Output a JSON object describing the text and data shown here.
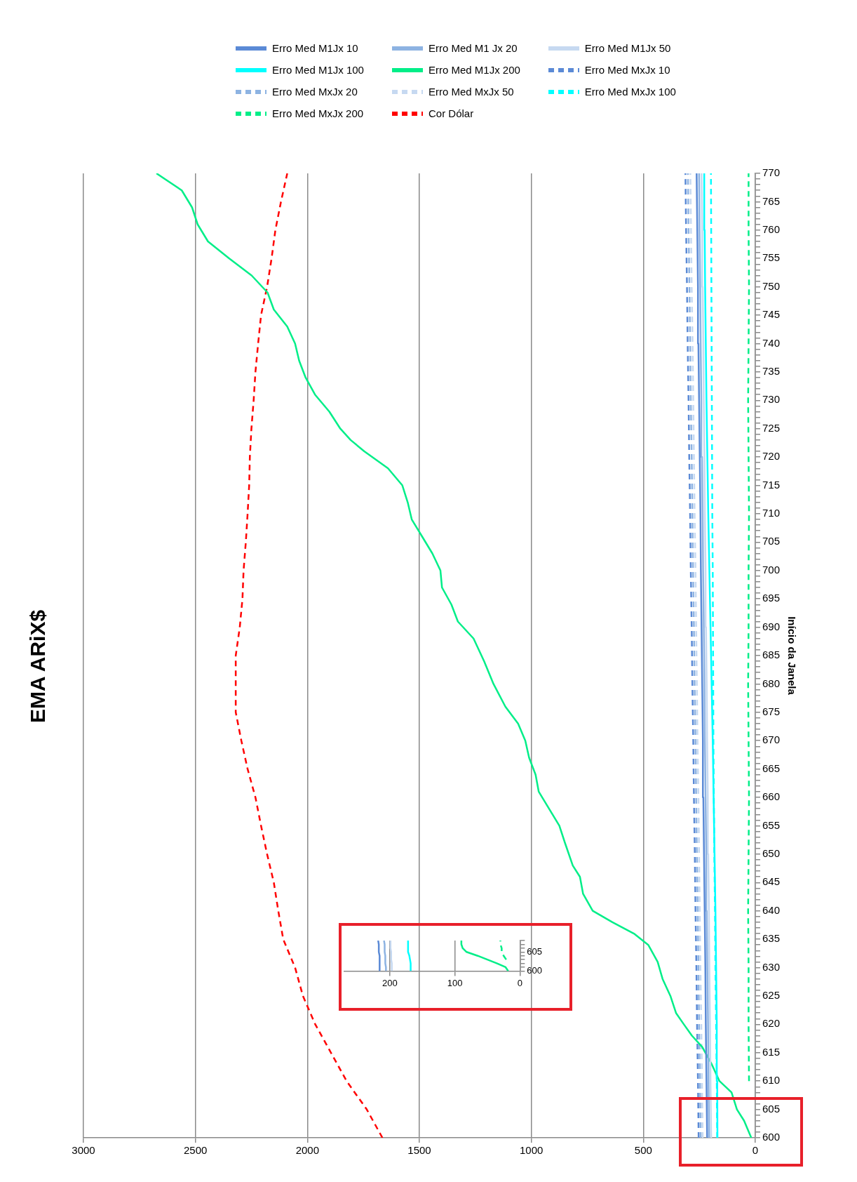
{
  "chart_data": [
    {
      "type": "line",
      "title": "EMA ARiX$",
      "ylabel": "Início da Janela",
      "xlim": [
        3000,
        0
      ],
      "xticks": [
        0,
        500,
        1000,
        1500,
        2000,
        2500,
        3000
      ],
      "ylim": [
        600,
        770
      ],
      "yticks": [
        600,
        {
          "value": 601,
          "label": null
        },
        {
          "value": 602,
          "label": null
        },
        {
          "value": 603,
          "label": null
        },
        {
          "value": 604,
          "label": null
        },
        605,
        {
          "value": 606,
          "label": null
        },
        {
          "value": 607,
          "label": null
        },
        {
          "value": 608,
          "label": null
        },
        {
          "value": 609,
          "label": null
        },
        610,
        {
          "value": 611,
          "label": null
        },
        {
          "value": 612,
          "label": null
        },
        {
          "value": 613,
          "label": null
        },
        {
          "value": 614,
          "label": null
        },
        615,
        {
          "value": 616,
          "label": null
        },
        {
          "value": 617,
          "label": null
        },
        {
          "value": 618,
          "label": null
        },
        {
          "value": 619,
          "label": null
        },
        620,
        {
          "value": 621,
          "label": null
        },
        {
          "value": 622,
          "label": null
        },
        {
          "value": 623,
          "label": null
        },
        {
          "value": 624,
          "label": null
        },
        625,
        {
          "value": 626,
          "label": null
        },
        {
          "value": 627,
          "label": null
        },
        {
          "value": 628,
          "label": null
        },
        {
          "value": 629,
          "label": null
        },
        630,
        {
          "value": 631,
          "label": null
        },
        {
          "value": 632,
          "label": null
        },
        {
          "value": 633,
          "label": null
        },
        {
          "value": 634,
          "label": null
        },
        635,
        {
          "value": 636,
          "label": null
        },
        {
          "value": 637,
          "label": null
        },
        {
          "value": 638,
          "label": null
        },
        {
          "value": 639,
          "label": null
        },
        640,
        {
          "value": 641,
          "label": null
        },
        {
          "value": 642,
          "label": null
        },
        {
          "value": 643,
          "label": null
        },
        {
          "value": 644,
          "label": null
        },
        645,
        {
          "value": 646,
          "label": null
        },
        {
          "value": 647,
          "label": null
        },
        {
          "value": 648,
          "label": null
        },
        {
          "value": 649,
          "label": null
        },
        650,
        {
          "value": 651,
          "label": null
        },
        {
          "value": 652,
          "label": null
        },
        {
          "value": 653,
          "label": null
        },
        {
          "value": 654,
          "label": null
        },
        655,
        {
          "value": 656,
          "label": null
        },
        {
          "value": 657,
          "label": null
        },
        {
          "value": 658,
          "label": null
        },
        {
          "value": 659,
          "label": null
        },
        660,
        {
          "value": 661,
          "label": null
        },
        {
          "value": 662,
          "label": null
        },
        {
          "value": 663,
          "label": null
        },
        {
          "value": 664,
          "label": null
        },
        665,
        {
          "value": 666,
          "label": null
        },
        {
          "value": 667,
          "label": null
        },
        {
          "value": 668,
          "label": null
        },
        {
          "value": 669,
          "label": null
        },
        670,
        {
          "value": 671,
          "label": null
        },
        {
          "value": 672,
          "label": null
        },
        {
          "value": 673,
          "label": null
        },
        {
          "value": 674,
          "label": null
        },
        675,
        {
          "value": 676,
          "label": null
        },
        {
          "value": 677,
          "label": null
        },
        {
          "value": 678,
          "label": null
        },
        {
          "value": 679,
          "label": null
        },
        680,
        {
          "value": 681,
          "label": null
        },
        {
          "value": 682,
          "label": null
        },
        {
          "value": 683,
          "label": null
        },
        {
          "value": 684,
          "label": null
        },
        685,
        {
          "value": 686,
          "label": null
        },
        {
          "value": 687,
          "label": null
        },
        {
          "value": 688,
          "label": null
        },
        {
          "value": 689,
          "label": null
        },
        690,
        {
          "value": 691,
          "label": null
        },
        {
          "value": 692,
          "label": null
        },
        {
          "value": 693,
          "label": null
        },
        {
          "value": 694,
          "label": null
        },
        695,
        {
          "value": 696,
          "label": null
        },
        {
          "value": 697,
          "label": null
        },
        {
          "value": 698,
          "label": null
        },
        {
          "value": 699,
          "label": null
        },
        700,
        {
          "value": 701,
          "label": null
        },
        {
          "value": 702,
          "label": null
        },
        {
          "value": 703,
          "label": null
        },
        {
          "value": 704,
          "label": null
        },
        705,
        {
          "value": 706,
          "label": null
        },
        {
          "value": 707,
          "label": null
        },
        {
          "value": 708,
          "label": null
        },
        {
          "value": 709,
          "label": null
        },
        710,
        {
          "value": 711,
          "label": null
        },
        {
          "value": 712,
          "label": null
        },
        {
          "value": 713,
          "label": null
        },
        {
          "value": 714,
          "label": null
        },
        715,
        {
          "value": 716,
          "label": null
        },
        {
          "value": 717,
          "label": null
        },
        {
          "value": 718,
          "label": null
        },
        {
          "value": 719,
          "label": null
        },
        720,
        {
          "value": 721,
          "label": null
        },
        {
          "value": 722,
          "label": null
        },
        {
          "value": 723,
          "label": null
        },
        {
          "value": 724,
          "label": null
        },
        725,
        {
          "value": 726,
          "label": null
        },
        {
          "value": 727,
          "label": null
        },
        {
          "value": 728,
          "label": null
        },
        {
          "value": 729,
          "label": null
        },
        730,
        {
          "value": 731,
          "label": null
        },
        {
          "value": 732,
          "label": null
        },
        {
          "value": 733,
          "label": null
        },
        {
          "value": 734,
          "label": null
        },
        735,
        {
          "value": 736,
          "label": null
        },
        {
          "value": 737,
          "label": null
        },
        {
          "value": 738,
          "label": null
        },
        {
          "value": 739,
          "label": null
        },
        740,
        {
          "value": 741,
          "label": null
        },
        {
          "value": 742,
          "label": null
        },
        {
          "value": 743,
          "label": null
        },
        {
          "value": 744,
          "label": null
        },
        745,
        {
          "value": 746,
          "label": null
        },
        {
          "value": 747,
          "label": null
        },
        {
          "value": 748,
          "label": null
        },
        {
          "value": 749,
          "label": null
        },
        750,
        {
          "value": 751,
          "label": null
        },
        {
          "value": 752,
          "label": null
        },
        {
          "value": 753,
          "label": null
        },
        {
          "value": 754,
          "label": null
        },
        755,
        {
          "value": 756,
          "label": null
        },
        {
          "value": 757,
          "label": null
        },
        {
          "value": 758,
          "label": null
        },
        {
          "value": 759,
          "label": null
        },
        760,
        {
          "value": 761,
          "label": null
        },
        {
          "value": 762,
          "label": null
        },
        {
          "value": 763,
          "label": null
        },
        {
          "value": 764,
          "label": null
        },
        765,
        {
          "value": 766,
          "label": null
        },
        {
          "value": 767,
          "label": null
        },
        {
          "value": 768,
          "label": null
        },
        {
          "value": 769,
          "label": null
        },
        770
      ],
      "grid": "x",
      "legend": "top",
      "series": [
        {
          "name": "Erro Med M1Jx 10",
          "color": "#5b8ad6",
          "line_style": "solid",
          "x": [
            215,
            218,
            221,
            223,
            226,
            229,
            232,
            234,
            237,
            240,
            243,
            245,
            248,
            251,
            254,
            256,
            259,
            262
          ],
          "values": [
            600,
            610,
            620,
            630,
            640,
            650,
            660,
            670,
            680,
            690,
            700,
            710,
            720,
            730,
            740,
            750,
            760,
            770
          ]
        },
        {
          "name": "Erro Med M1 Jx 20",
          "color": "#8db3e2",
          "line_style": "solid",
          "x": [
            206,
            209,
            211,
            214,
            217,
            219,
            222,
            225,
            227,
            230,
            233,
            235,
            238,
            241,
            244,
            246,
            249,
            251
          ],
          "values": [
            600,
            610,
            620,
            630,
            640,
            650,
            660,
            670,
            680,
            690,
            700,
            710,
            720,
            730,
            740,
            750,
            760,
            770
          ]
        },
        {
          "name": "Erro Med M1Jx 50",
          "color": "#c6d9f1",
          "line_style": "solid",
          "x": [
            197,
            200,
            202,
            205,
            207,
            210,
            212,
            215,
            217,
            220,
            222,
            225,
            227,
            230,
            232,
            235,
            237,
            240
          ],
          "values": [
            600,
            610,
            620,
            630,
            640,
            650,
            660,
            670,
            680,
            690,
            700,
            710,
            720,
            730,
            740,
            750,
            760,
            770
          ]
        },
        {
          "name": "Erro Med M1Jx 100",
          "color": "#00ffff",
          "line_style": "solid",
          "x": [
            169,
            170,
            172,
            175,
            178,
            182,
            186,
            190,
            195,
            200,
            205,
            210,
            214,
            218,
            221,
            224,
            226,
            228
          ],
          "values": [
            600,
            610,
            620,
            630,
            640,
            650,
            660,
            670,
            680,
            690,
            700,
            710,
            720,
            730,
            740,
            750,
            760,
            770
          ]
        },
        {
          "name": "Erro Med M1Jx 200",
          "color": "#00ee88",
          "line_style": "solid",
          "x": [
            18,
            50,
            82,
            106,
            160,
            195,
            237,
            283,
            319,
            354,
            379,
            414,
            436,
            478,
            542,
            638,
            726,
            769,
            783,
            815,
            850,
            875,
            921,
            967,
            981,
            1010,
            1027,
            1059,
            1116,
            1169,
            1211,
            1258,
            1328,
            1357,
            1399,
            1406,
            1442,
            1488,
            1534,
            1552,
            1576,
            1640,
            1746,
            1807,
            1853,
            1902,
            1966,
            2008,
            2037,
            2055,
            2090,
            2150,
            2178,
            2249,
            2349,
            2444,
            2490,
            2515,
            2561,
            2674
          ],
          "values": [
            600,
            603,
            605,
            608,
            610,
            613,
            616,
            618,
            620,
            622,
            625,
            628,
            631,
            634,
            636,
            638,
            640,
            643,
            646,
            648,
            652,
            655,
            658,
            661,
            664,
            667,
            670,
            673,
            676,
            680,
            684,
            688,
            691,
            694,
            697,
            700,
            703,
            706,
            709,
            712,
            715,
            718,
            721,
            723,
            725,
            728,
            731,
            734,
            737,
            740,
            743,
            746,
            749,
            752,
            755,
            758,
            761,
            764,
            767,
            770
          ]
        },
        {
          "name": "Erro Med MxJx 10",
          "color": "#5b8ad6",
          "line_style": "dashed",
          "x": [
            253,
            256,
            260,
            263,
            267,
            270,
            274,
            277,
            281,
            284,
            288,
            291,
            295,
            298,
            302,
            305,
            309,
            312
          ],
          "values": [
            600,
            610,
            620,
            630,
            640,
            650,
            660,
            670,
            680,
            690,
            700,
            710,
            720,
            730,
            740,
            750,
            760,
            770
          ]
        },
        {
          "name": "Erro Med MxJx 20",
          "color": "#8db3e2",
          "line_style": "dashed",
          "x": [
            244,
            247,
            251,
            254,
            257,
            261,
            264,
            267,
            271,
            274,
            278,
            281,
            284,
            288,
            291,
            294,
            298,
            301
          ],
          "values": [
            600,
            610,
            620,
            630,
            640,
            650,
            660,
            670,
            680,
            690,
            700,
            710,
            720,
            730,
            740,
            750,
            760,
            770
          ]
        },
        {
          "name": "Erro Med MxJx 50",
          "color": "#c6d9f1",
          "line_style": "dashed",
          "x": [
            235,
            238,
            241,
            245,
            248,
            251,
            254,
            258,
            261,
            264,
            267,
            271,
            274,
            277,
            280,
            284,
            287,
            290
          ],
          "values": [
            600,
            610,
            620,
            630,
            640,
            650,
            660,
            670,
            680,
            690,
            700,
            710,
            720,
            730,
            740,
            750,
            760,
            770
          ]
        },
        {
          "name": "Erro Med MxJx 100",
          "color": "#00ffff",
          "line_style": "dashed",
          "x": [
            170,
            172,
            175,
            178,
            180,
            183,
            185,
            187,
            188,
            189,
            190,
            192,
            193,
            194,
            195,
            196,
            197,
            198
          ],
          "values": [
            600,
            610,
            620,
            630,
            640,
            650,
            660,
            670,
            680,
            690,
            700,
            710,
            720,
            730,
            740,
            750,
            760,
            770
          ]
        },
        {
          "name": "Erro Med MxJx 200",
          "color": "#00ee88",
          "line_style": "dashed",
          "x": [
            28,
            30,
            30,
            32,
            30,
            28,
            30,
            32,
            30,
            30,
            28,
            30,
            32,
            30,
            28,
            30,
            30
          ],
          "values": [
            610,
            620,
            630,
            640,
            650,
            660,
            670,
            680,
            690,
            700,
            710,
            720,
            730,
            740,
            750,
            760,
            770
          ]
        },
        {
          "name": "Cor Dólar",
          "color": "#ff0000",
          "line_style": "dashed",
          "x": [
            1665,
            1735,
            1825,
            1895,
            1965,
            2020,
            2055,
            2108,
            2130,
            2150,
            2180,
            2207,
            2232,
            2267,
            2295,
            2320,
            2320,
            2320,
            2302,
            2290,
            2285,
            2275,
            2267,
            2260,
            2257,
            2250,
            2240,
            2232,
            2220,
            2207,
            2180,
            2160,
            2143,
            2118,
            2090
          ],
          "values": [
            600,
            605,
            610,
            615,
            620,
            625,
            630,
            635,
            640,
            645,
            650,
            655,
            660,
            665,
            670,
            675,
            680,
            685,
            690,
            695,
            700,
            705,
            710,
            715,
            720,
            725,
            730,
            735,
            740,
            745,
            750,
            755,
            760,
            765,
            770
          ]
        }
      ]
    },
    {
      "type": "line",
      "xlim": [
        270,
        0
      ],
      "xticks": [
        0,
        100,
        200
      ],
      "ylim": [
        600,
        608
      ],
      "yticks": [
        600,
        {
          "value": 601,
          "label": null
        },
        {
          "value": 602,
          "label": null
        },
        {
          "value": 603,
          "label": null
        },
        {
          "value": 604,
          "label": null
        },
        605,
        {
          "value": 606,
          "label": null
        },
        {
          "value": 607,
          "label": null
        },
        {
          "value": 608,
          "label": null
        }
      ],
      "grid": "x",
      "series": [
        {
          "color": "#5b8ad6",
          "line_style": "solid",
          "x": [
            215,
            215,
            216,
            216,
            216,
            217,
            217,
            217,
            218
          ],
          "values": [
            600,
            601,
            602,
            603,
            604,
            605,
            606,
            607,
            608
          ]
        },
        {
          "color": "#8db3e2",
          "line_style": "solid",
          "x": [
            206,
            206,
            207,
            207,
            207,
            208,
            208,
            208,
            209
          ],
          "values": [
            600,
            601,
            602,
            603,
            604,
            605,
            606,
            607,
            608
          ]
        },
        {
          "color": "#c6d9f1",
          "line_style": "solid",
          "x": [
            197,
            197,
            197,
            198,
            198,
            198,
            199,
            199,
            199
          ],
          "values": [
            600,
            601,
            602,
            603,
            604,
            605,
            606,
            607,
            608
          ]
        },
        {
          "color": "#00ffff",
          "line_style": "solid",
          "x": [
            168,
            168,
            168,
            169,
            170,
            172,
            172,
            172,
            172
          ],
          "values": [
            600,
            601,
            602,
            603,
            604,
            605,
            606,
            607,
            608
          ]
        },
        {
          "color": "#00ee88",
          "line_style": "solid",
          "x": [
            18,
            22,
            35,
            50,
            65,
            82,
            88,
            90,
            90
          ],
          "values": [
            600,
            601,
            602,
            603,
            604,
            605,
            606,
            607,
            608
          ]
        },
        {
          "color": "#00ee88",
          "line_style": "dashed",
          "x": [
            21,
            25,
            28,
            28,
            30,
            30
          ],
          "values": [
            603,
            604,
            605,
            606,
            607,
            608
          ]
        }
      ]
    }
  ]
}
